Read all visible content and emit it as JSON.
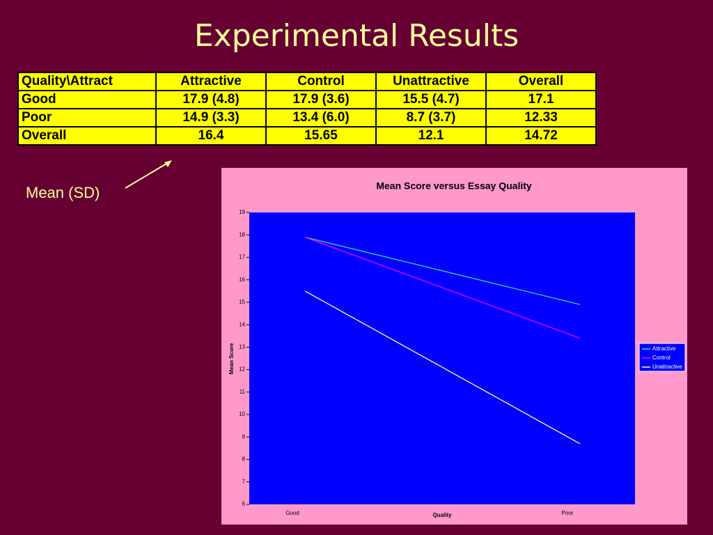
{
  "title": "Experimental Results",
  "table": {
    "header": [
      "Quality\\Attract",
      "Attractive",
      "Control",
      "Unattractive",
      "Overall"
    ],
    "rows": [
      [
        "Good",
        "17.9 (4.8)",
        "17.9 (3.6)",
        "15.5 (4.7)",
        "17.1"
      ],
      [
        "Poor",
        "14.9 (3.3)",
        "13.4 (6.0)",
        "8.7 (3.7)",
        "12.33"
      ],
      [
        "Overall",
        "16.4",
        "15.65",
        "12.1",
        "14.72"
      ]
    ]
  },
  "annotation": "Mean (SD)",
  "chart_data": {
    "type": "line",
    "title": "Mean Score versus Essay Quality",
    "x_label": "Quality",
    "y_label": "Mean Score",
    "categories": [
      "Good",
      "Poor"
    ],
    "series": [
      {
        "name": "Attractive",
        "color": "#33e0a0",
        "values": [
          17.9,
          14.9
        ]
      },
      {
        "name": "Control",
        "color": "#ff00ff",
        "values": [
          17.9,
          13.4
        ]
      },
      {
        "name": "Unattractive",
        "color": "#ffff99",
        "values": [
          15.5,
          8.7
        ]
      }
    ],
    "ylim": [
      6,
      19
    ],
    "yticks": [
      6,
      7,
      8,
      9,
      10,
      11,
      12,
      13,
      14,
      15,
      16,
      17,
      18,
      19
    ],
    "legend": "right"
  }
}
